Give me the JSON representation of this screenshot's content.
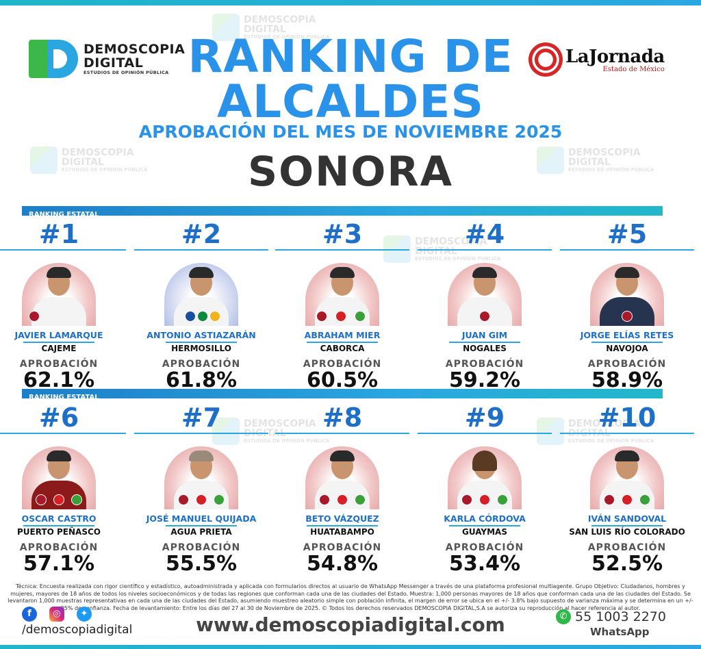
{
  "header": {
    "brand": {
      "name_line1": "DEMOSCOPIA",
      "name_line2": "DIGITAL",
      "tagline": "ESTUDIOS DE OPINIÓN PÚBLICA"
    },
    "title_line1": "RANKING DE",
    "title_line2": "ALCALDES",
    "subtitle": "APROBACIÓN DEL MES DE NOVIEMBRE 2025",
    "state": "SONORA",
    "partner": {
      "name": "LaJornada",
      "sub": "Estado de México"
    }
  },
  "watermark": {
    "line1": "DEMOSCOPIA",
    "line2": "DIGITAL",
    "tagline": "ESTUDIOS DE OPINIÓN PÚBLICA"
  },
  "section_label": "RANKING ESTATAL",
  "approval_label": "APROBACIÓN",
  "mayors": [
    {
      "rank": "#1",
      "name": "JAVIER LAMARQUE",
      "city": "CAJEME",
      "approval": "62.1%",
      "approval_value": 62.1
    },
    {
      "rank": "#2",
      "name": "ANTONIO ASTIAZARÁN",
      "city": "HERMOSILLO",
      "approval": "61.8%",
      "approval_value": 61.8
    },
    {
      "rank": "#3",
      "name": "ABRAHAM MIER",
      "city": "CABORCA",
      "approval": "60.5%",
      "approval_value": 60.5
    },
    {
      "rank": "#4",
      "name": "JUAN GIM",
      "city": "NOGALES",
      "approval": "59.2%",
      "approval_value": 59.2
    },
    {
      "rank": "#5",
      "name": "JORGE ELÍAS RETES",
      "city": "NAVOJOA",
      "approval": "58.9%",
      "approval_value": 58.9
    },
    {
      "rank": "#6",
      "name": "OSCAR CASTRO",
      "city": "PUERTO PEÑASCO",
      "approval": "57.1%",
      "approval_value": 57.1
    },
    {
      "rank": "#7",
      "name": "JOSÉ MANUEL QUIJADA",
      "city": "AGUA PRIETA",
      "approval": "55.5%",
      "approval_value": 55.5
    },
    {
      "rank": "#8",
      "name": "BETO VÁZQUEZ",
      "city": "HUATABAMPO",
      "approval": "54.8%",
      "approval_value": 54.8
    },
    {
      "rank": "#9",
      "name": "KARLA CÓRDOVA",
      "city": "GUAYMAS",
      "approval": "53.4%",
      "approval_value": 53.4
    },
    {
      "rank": "#10",
      "name": "IVÁN SANDOVAL",
      "city": "SAN LUIS RÍO COLORADO",
      "approval": "52.5%",
      "approval_value": 52.5
    }
  ],
  "methodology_note": "Técnica: Encuesta realizada con rigor científico y estadístico, autoadministrada y aplicada con formularios directos al usuario de WhatsApp Messenger a través de una plataforma profesional multiagente. Grupo Objetivo: Ciudadanos, hombres y mujeres, mayores de 18 años de todos los niveles socioeconómicos y de todas las regiones que conforman cada una de las ciudades del Estado. Muestra: 1,000 personas mayores de 18 años que conforman cada una de las ciudades del Estado. Se levantaron 1,000 muestras representativas en cada una de las ciudades del Estado, asumiendo muestreo aleatorio simple con población infinita, el margen de error se ubica en el +/- 3.8% bajo supuesto de varianza máxima y se determina en un +/- 95% de confianza. Fecha de levantamiento: Entre los días del 27 al 30 de Noviembre de 2025. © Todos los derechos reservados DEMOSCOPIA DIGITAL,S.A se autoriza su reproducción al hacer referencia al autor.",
  "footer": {
    "handle": "/demoscopiadigital",
    "website": "www.demoscopiadigital.com",
    "phone": "55 1003 2270",
    "phone_label": "WhatsApp"
  }
}
